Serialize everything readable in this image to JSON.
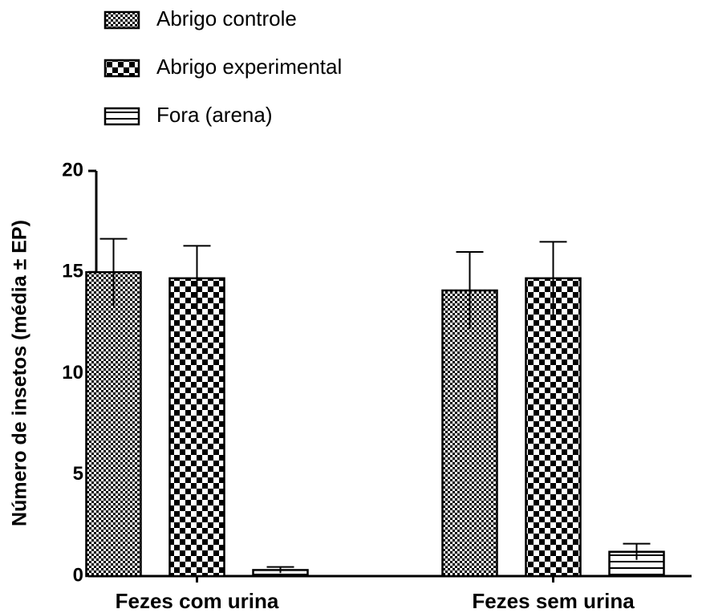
{
  "chart_data": {
    "type": "bar",
    "ylabel": "Número de insetos (média ± EP)",
    "categories": [
      "Fezes com urina",
      "Fezes sem urina"
    ],
    "series": [
      {
        "name": "Abrigo controle",
        "pattern": "fine-checker",
        "values": [
          15.0,
          14.1
        ],
        "errors": [
          1.65,
          1.9
        ]
      },
      {
        "name": "Abrigo experimental",
        "pattern": "checker",
        "values": [
          14.7,
          14.7
        ],
        "errors": [
          1.6,
          1.8
        ]
      },
      {
        "name": "Fora (arena)",
        "pattern": "horizontal-lines",
        "values": [
          0.3,
          1.2
        ],
        "errors": [
          0.15,
          0.4
        ]
      }
    ],
    "ylim": [
      0,
      20
    ],
    "yticks": [
      0,
      5,
      10,
      15,
      20
    ]
  }
}
